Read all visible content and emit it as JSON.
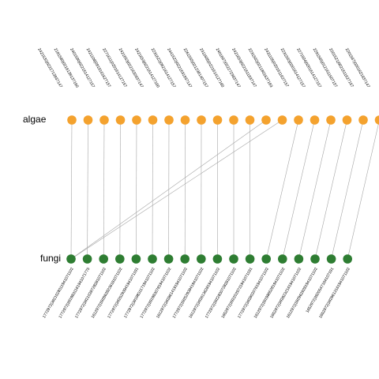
{
  "colors": {
    "algae_node": "#f4a22e",
    "fungi_node": "#2e7d32",
    "edge": "#a6a6a6"
  },
  "rows": {
    "top": {
      "label": "algae",
      "nodes": [
        "2421532|0222713837147",
        "2181580|0216138137160",
        "2401590|0221614127157",
        "2421108|0919161627157",
        "2271611|0201614127157",
        "2421653|0221632837147",
        "2421653|0221614127160",
        "2231622|0821614127157",
        "2441522|0221631837147",
        "2261555|0212361407157",
        "2311685|0221614127160",
        "2401607|0222723837147",
        "2421653|0221611837147",
        "2231502|0211801637163",
        "2431105|0201611627157",
        "2231503|0201614127157",
        "2271504|0201614127157",
        "2291565|0121611507157",
        "2201521|0021611627157",
        "2201567|0201621837147"
      ]
    },
    "bottom": {
      "label": "fungi",
      "nodes": [
        "1772972|3921028311941071102",
        "1772972|3919831161941071775",
        "1772972|3921028728281071102",
        "1612972|3928628236181071102",
        "1772972|3925293941941071191",
        "1772972|3919831171941071102",
        "1772972|3919830781941071102",
        "1612972|3928614191941071102",
        "1772972|3925293941941071102",
        "1612972|3926136281941071102",
        "1772972|3922830728281071102",
        "1652972|3922029731941071191",
        "1772972|3928020761941071102",
        "1612972|3919865281941071102",
        "1652972|3928232161941071102",
        "1612972|3929629281941071102",
        "1652972|3920547164107191",
        "1652972|3929613161941071102"
      ]
    }
  },
  "edges": [
    [
      0,
      0
    ],
    [
      1,
      1
    ],
    [
      2,
      2
    ],
    [
      3,
      3
    ],
    [
      4,
      4
    ],
    [
      5,
      5
    ],
    [
      6,
      6
    ],
    [
      7,
      7
    ],
    [
      8,
      8
    ],
    [
      9,
      9
    ],
    [
      10,
      10
    ],
    [
      11,
      11
    ],
    [
      12,
      0
    ],
    [
      13,
      0
    ],
    [
      14,
      12
    ],
    [
      15,
      13
    ],
    [
      16,
      14
    ],
    [
      17,
      15
    ],
    [
      18,
      16
    ],
    [
      19,
      17
    ]
  ]
}
